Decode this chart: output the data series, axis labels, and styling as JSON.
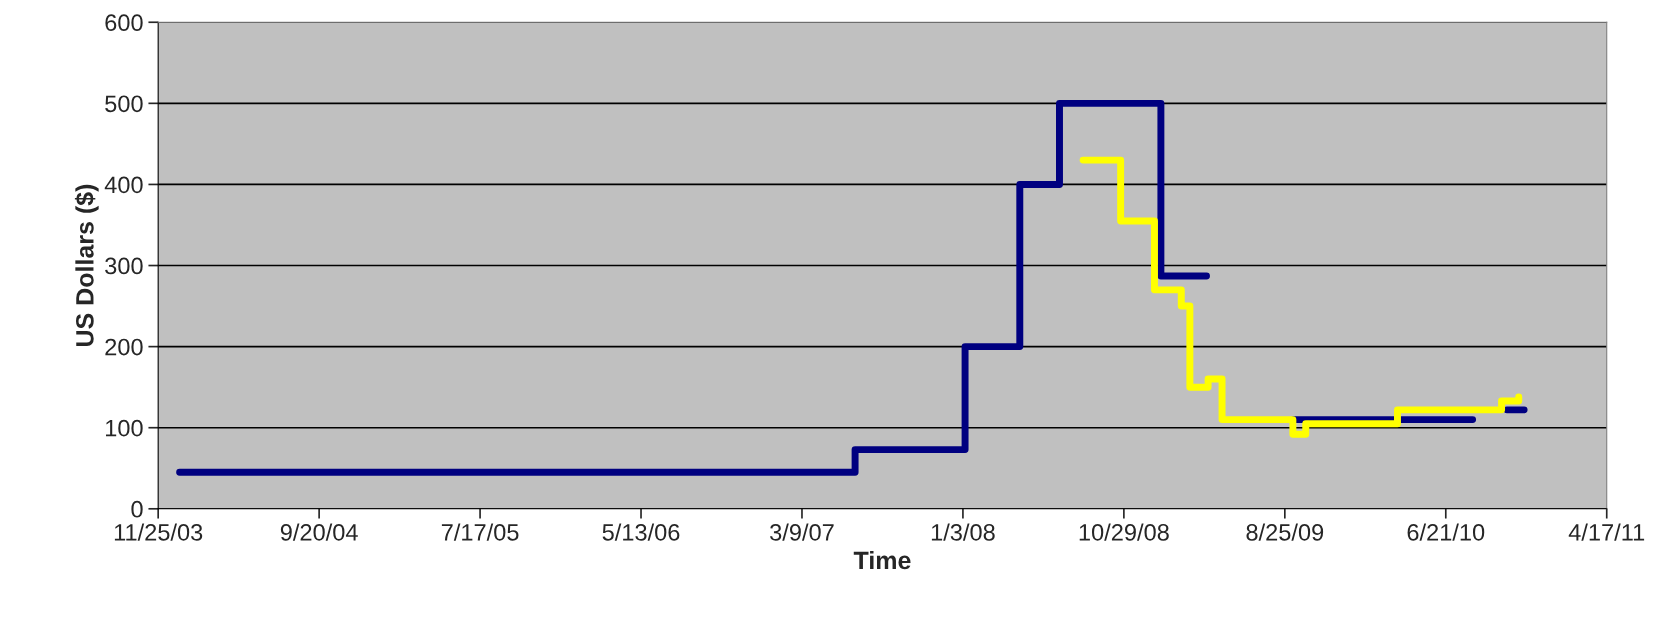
{
  "chart_data": {
    "type": "step",
    "xlabel": "Time",
    "ylabel": "US Dollars ($)",
    "series": [
      {
        "color": "#000080",
        "x": [
          "2004-01-04",
          "2007-06-16",
          "2008-01-07",
          "2008-04-18",
          "2008-07-01",
          "2009-01-06",
          "2009-03-19",
          "2009-04-01",
          "2009-09-11",
          "2010-07-29",
          "2010-08-10",
          "2010-10-13",
          "2010-11-14"
        ],
        "values": [
          45,
          73,
          200,
          400,
          500,
          287,
          287,
          null,
          110,
          110,
          null,
          122,
          122
        ]
      },
      {
        "color": "#ffff00",
        "x": [
          "2008-08-14",
          "2008-10-23",
          "2008-12-25",
          "2009-02-13",
          "2009-03-01",
          "2009-04-04",
          "2009-04-30",
          "2009-09-09",
          "2009-10-03",
          "2010-03-23",
          "2010-10-03",
          "2010-11-04"
        ],
        "values": [
          430,
          355,
          270,
          250,
          150,
          160,
          110,
          92,
          105,
          122,
          133,
          138
        ]
      }
    ],
    "xlim": [
      "2003-11-25",
      "2011-04-17"
    ],
    "xticks": [
      {
        "value": "2003-11-25",
        "label": "11/25/03"
      },
      {
        "value": "2004-09-20",
        "label": "9/20/04"
      },
      {
        "value": "2005-07-17",
        "label": "7/17/05"
      },
      {
        "value": "2006-05-13",
        "label": "5/13/06"
      },
      {
        "value": "2007-03-09",
        "label": "3/9/07"
      },
      {
        "value": "2008-01-03",
        "label": "1/3/08"
      },
      {
        "value": "2008-10-29",
        "label": "10/29/08"
      },
      {
        "value": "2009-08-25",
        "label": "8/25/09"
      },
      {
        "value": "2010-06-21",
        "label": "6/21/10"
      },
      {
        "value": "2011-04-17",
        "label": "4/17/11"
      }
    ],
    "ylim": [
      0,
      600
    ],
    "yticks": [
      0,
      100,
      200,
      300,
      400,
      500,
      600
    ],
    "grid": "y",
    "legend": false
  }
}
